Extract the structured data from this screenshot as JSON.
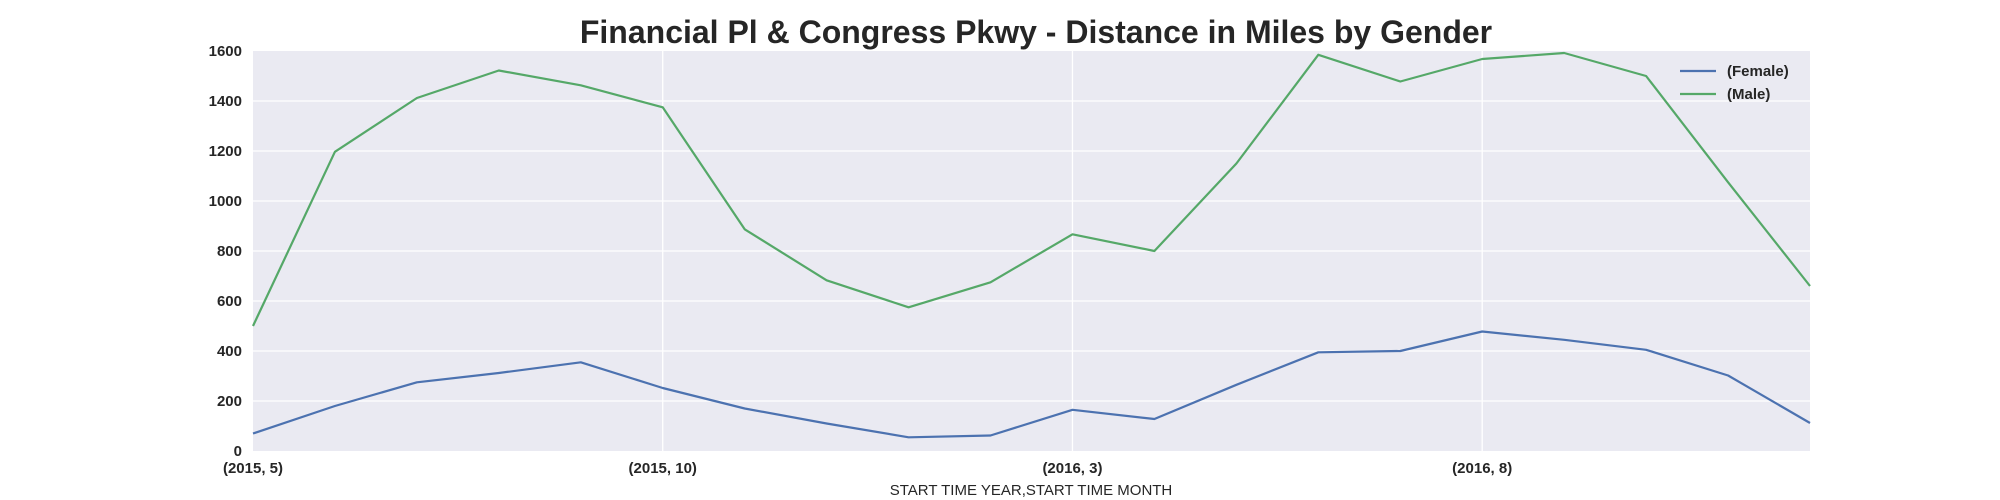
{
  "chart_data": {
    "type": "line",
    "title": "Financial Pl & Congress Pkwy - Distance in Miles by Gender",
    "xlabel": "START TIME YEAR,START TIME MONTH",
    "ylabel": "",
    "ylim": [
      0,
      1600
    ],
    "yticks": [
      "0",
      "200",
      "400",
      "600",
      "800",
      "1000",
      "1200",
      "1400",
      "1600"
    ],
    "x": [
      "(2015, 5)",
      "(2015, 6)",
      "(2015, 7)",
      "(2015, 8)",
      "(2015, 9)",
      "(2015, 10)",
      "(2015, 11)",
      "(2015, 12)",
      "(2016, 1)",
      "(2016, 2)",
      "(2016, 3)",
      "(2016, 4)",
      "(2016, 5)",
      "(2016, 6)",
      "(2016, 7)",
      "(2016, 8)",
      "(2016, 9)",
      "(2016, 10)",
      "(2016, 11)",
      "(2016, 12)"
    ],
    "xtick_labels": [
      "(2015, 5)",
      "(2015, 10)",
      "(2016, 3)",
      "(2016, 8)"
    ],
    "grid": true,
    "legend_position": "top-right",
    "series": [
      {
        "name": "(Female)",
        "color": "#4c72b0",
        "values": [
          70,
          180,
          275,
          312,
          355,
          252,
          170,
          110,
          55,
          62,
          165,
          128,
          265,
          395,
          400,
          478,
          445,
          405,
          302,
          112
        ]
      },
      {
        "name": "(Male)",
        "color": "#55a868",
        "values": [
          500,
          1197,
          1412,
          1522,
          1463,
          1375,
          887,
          683,
          575,
          675,
          867,
          800,
          1150,
          1585,
          1478,
          1568,
          1592,
          1500,
          1075,
          660
        ]
      }
    ],
    "colors": {
      "plot_background": "#eaeaf2",
      "grid": "#ffffff",
      "text": "#262626"
    }
  }
}
